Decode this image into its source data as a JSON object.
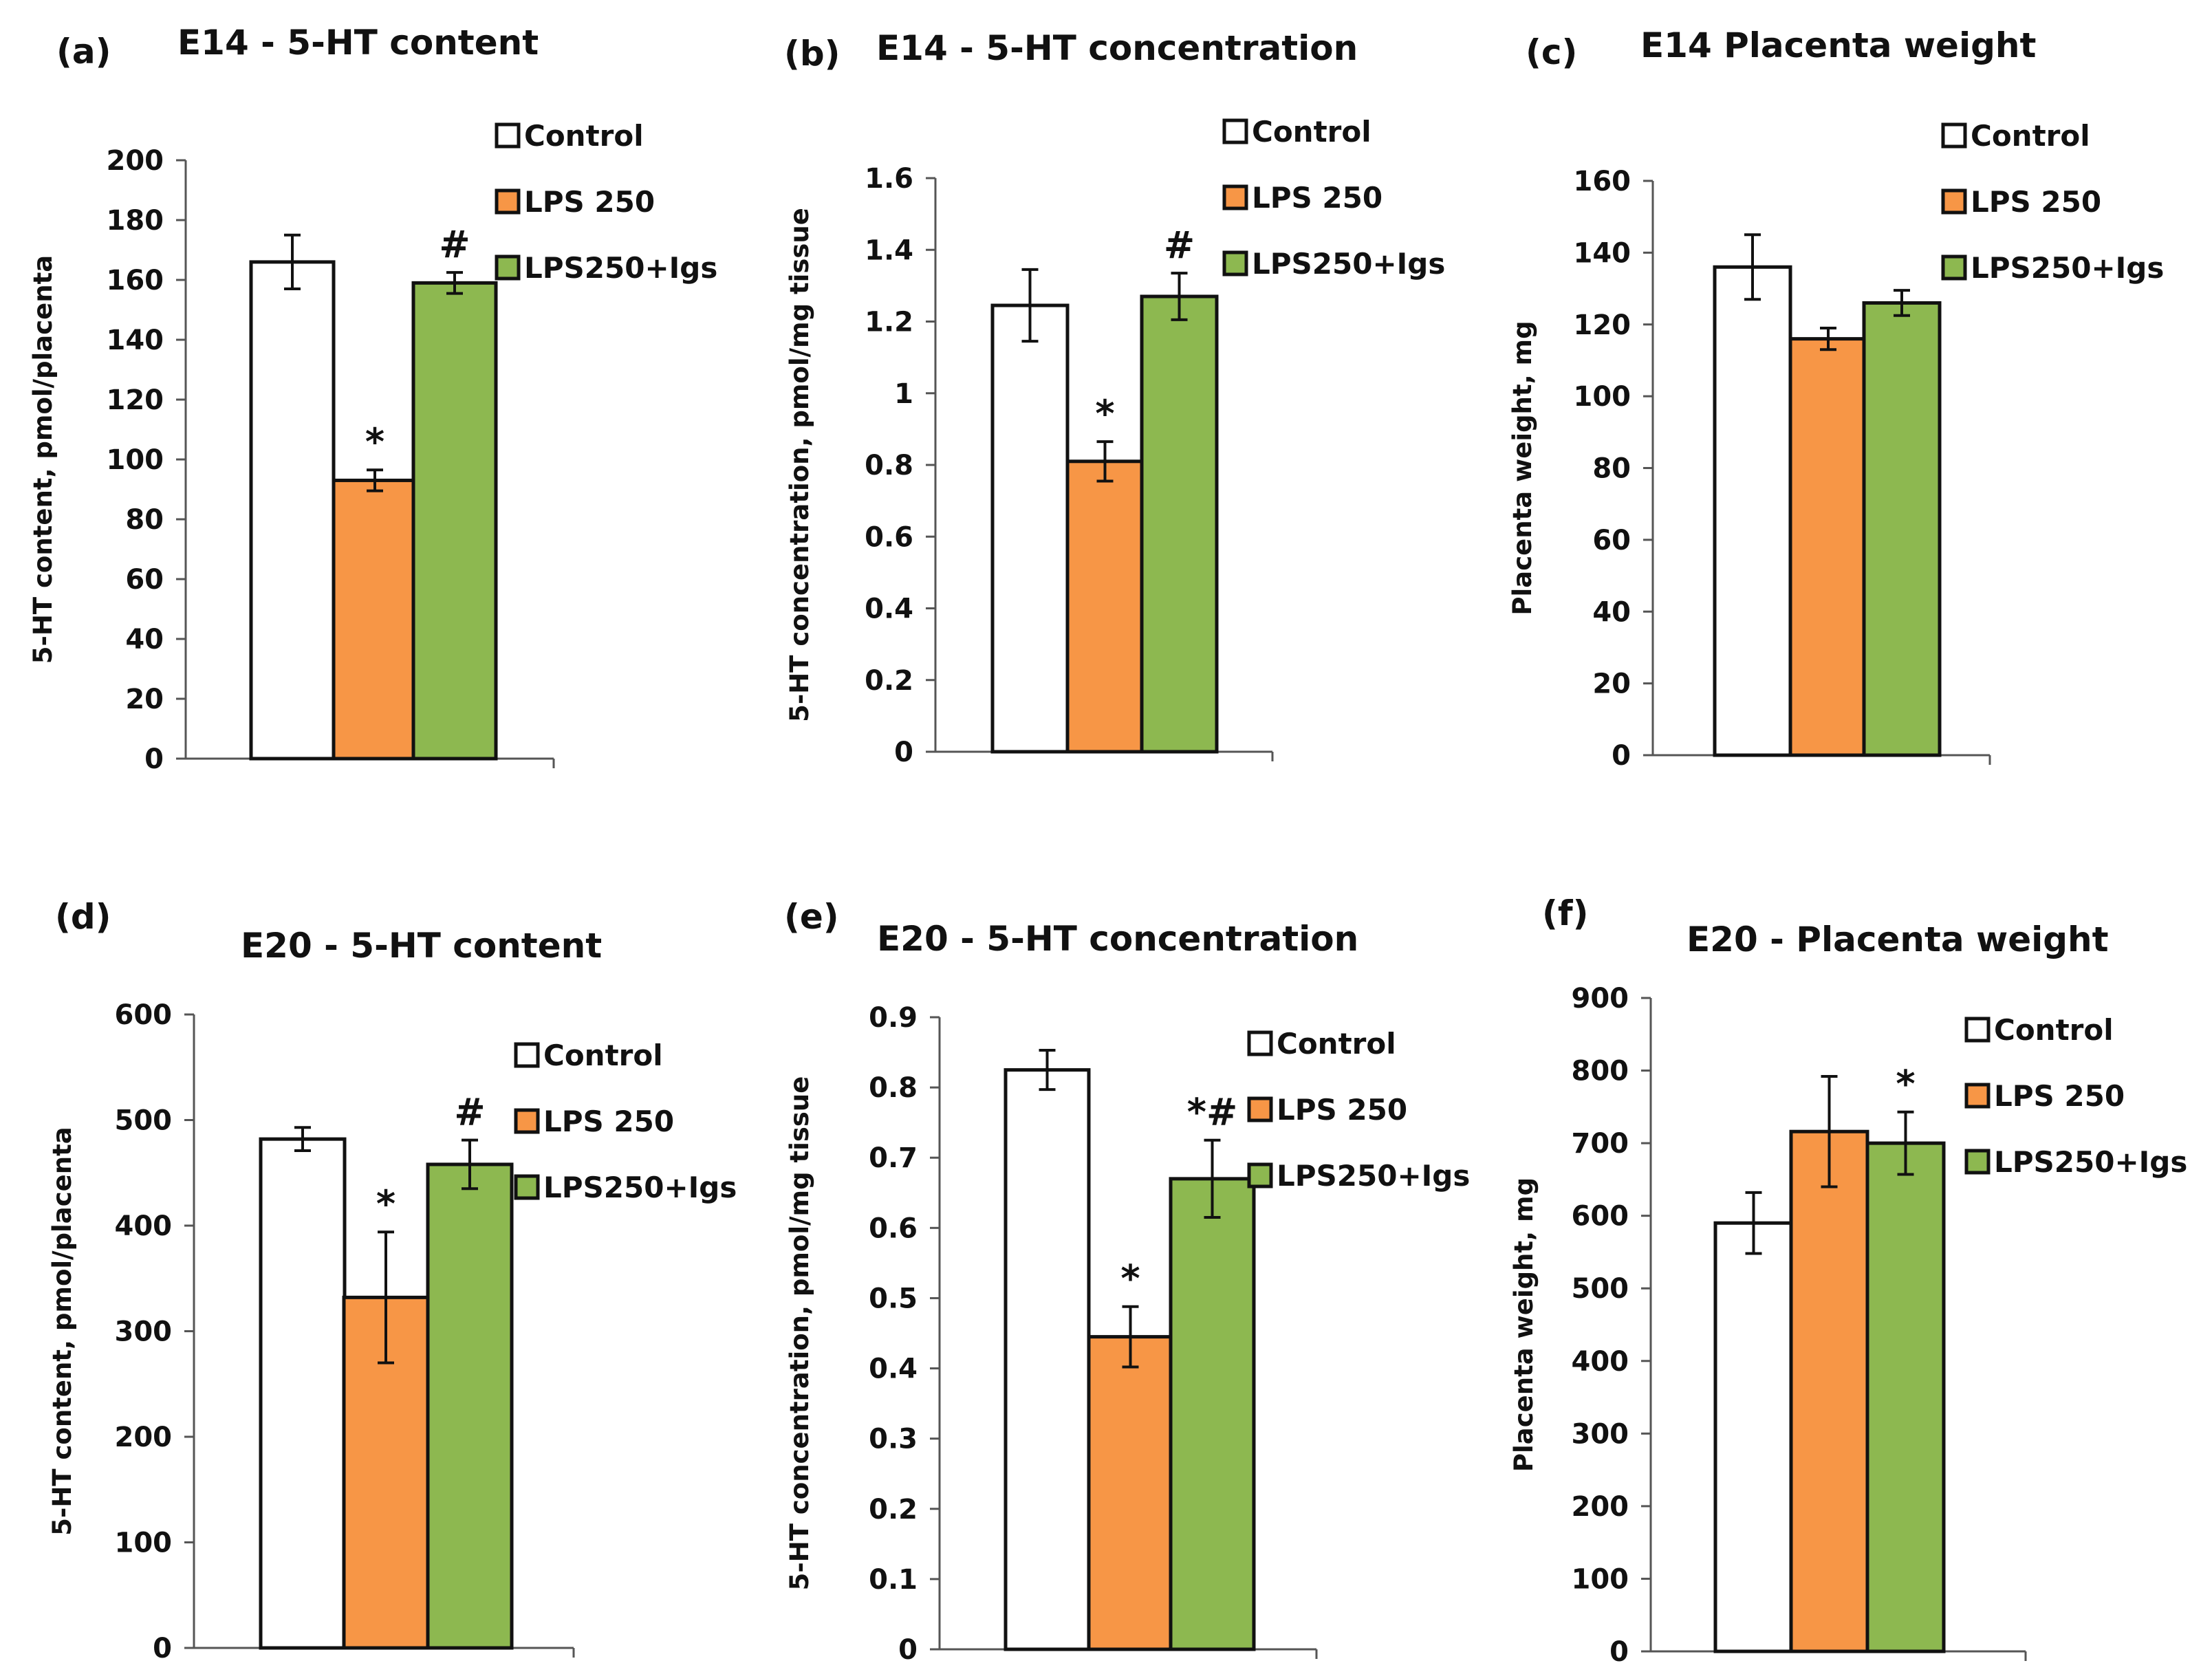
{
  "figure": {
    "group_names": [
      "Control",
      "LPS 250",
      "LPS250+Igs"
    ],
    "colors": {
      "control": "#ffffff",
      "lps250": "#f79646",
      "lps250_igs": "#8db850",
      "stroke": "#111111"
    }
  },
  "chart_data": [
    {
      "panel": "(a)",
      "type": "bar",
      "title": "E14 - 5-HT content",
      "xlabel": "",
      "ylabel": "5-HT content, pmol/placenta",
      "ylim": [
        0,
        200
      ],
      "yticks": [
        0,
        20,
        40,
        60,
        80,
        100,
        120,
        140,
        160,
        180,
        200
      ],
      "categories": [
        "Control",
        "LPS 250",
        "LPS250+Igs"
      ],
      "values": [
        166,
        93,
        159
      ],
      "errors": [
        9,
        3.5,
        3.5
      ],
      "annotations": [
        "",
        "*",
        "#"
      ],
      "legend": [
        "Control",
        "LPS 250",
        "LPS250+Igs"
      ],
      "legend_position": "top-right"
    },
    {
      "panel": "(b)",
      "type": "bar",
      "title": "E14 - 5-HT concentration",
      "xlabel": "",
      "ylabel": "5-HT concentration, pmol/mg tissue",
      "ylim": [
        0,
        1.6
      ],
      "yticks": [
        0,
        0.2,
        0.4,
        0.6,
        0.8,
        1,
        1.2,
        1.4,
        1.6
      ],
      "categories": [
        "Control",
        "LPS 250",
        "LPS250+Igs"
      ],
      "values": [
        1.245,
        0.81,
        1.27
      ],
      "errors": [
        0.1,
        0.055,
        0.065
      ],
      "annotations": [
        "",
        "*",
        "#"
      ],
      "legend": [
        "Control",
        "LPS 250",
        "LPS250+Igs"
      ],
      "legend_position": "top-right"
    },
    {
      "panel": "(c)",
      "type": "bar",
      "title": "E14 Placenta weight",
      "xlabel": "",
      "ylabel": "Placenta weight, mg",
      "ylim": [
        0,
        160
      ],
      "yticks": [
        0,
        20,
        40,
        60,
        80,
        100,
        120,
        140,
        160
      ],
      "categories": [
        "Control",
        "LPS 250",
        "LPS250+Igs"
      ],
      "values": [
        136,
        116,
        126
      ],
      "errors": [
        9,
        3,
        3.5
      ],
      "annotations": [
        "",
        "",
        ""
      ],
      "legend": [
        "Control",
        "LPS 250",
        "LPS250+Igs"
      ],
      "legend_position": "top-right"
    },
    {
      "panel": "(d)",
      "type": "bar",
      "title": "E20 - 5-HT content",
      "xlabel": "",
      "ylabel": "5-HT content, pmol/placenta",
      "ylim": [
        0,
        600
      ],
      "yticks": [
        0,
        100,
        200,
        300,
        400,
        500,
        600
      ],
      "categories": [
        "Control",
        "LPS 250",
        "LPS250+Igs"
      ],
      "values": [
        482,
        332,
        458
      ],
      "errors": [
        11,
        62,
        23
      ],
      "annotations": [
        "",
        "*",
        "#"
      ],
      "legend": [
        "Control",
        "LPS 250",
        "LPS250+Igs"
      ],
      "legend_position": "top-right"
    },
    {
      "panel": "(e)",
      "type": "bar",
      "title": "E20 - 5-HT concentration",
      "xlabel": "",
      "ylabel": "5-HT concentration, pmol/mg tissue",
      "ylim": [
        0,
        0.9
      ],
      "yticks": [
        0,
        0.1,
        0.2,
        0.3,
        0.4,
        0.5,
        0.6,
        0.7,
        0.8,
        0.9
      ],
      "categories": [
        "Control",
        "LPS 250",
        "LPS250+Igs"
      ],
      "values": [
        0.825,
        0.445,
        0.67
      ],
      "errors": [
        0.028,
        0.043,
        0.055
      ],
      "annotations": [
        "",
        "*",
        "*#"
      ],
      "legend": [
        "Control",
        "LPS 250",
        "LPS250+Igs"
      ],
      "legend_position": "right"
    },
    {
      "panel": "(f)",
      "type": "bar",
      "title": "E20 - Placenta weight",
      "xlabel": "",
      "ylabel": "Placenta weight, mg",
      "ylim": [
        0,
        900
      ],
      "yticks": [
        0,
        100,
        200,
        300,
        400,
        500,
        600,
        700,
        800,
        900
      ],
      "categories": [
        "Control",
        "LPS 250",
        "LPS250+Igs"
      ],
      "values": [
        590,
        716,
        700
      ],
      "errors": [
        42,
        76,
        43
      ],
      "annotations": [
        "",
        "",
        "*"
      ],
      "legend": [
        "Control",
        "LPS 250",
        "LPS250+Igs"
      ],
      "legend_position": "top-right"
    }
  ]
}
